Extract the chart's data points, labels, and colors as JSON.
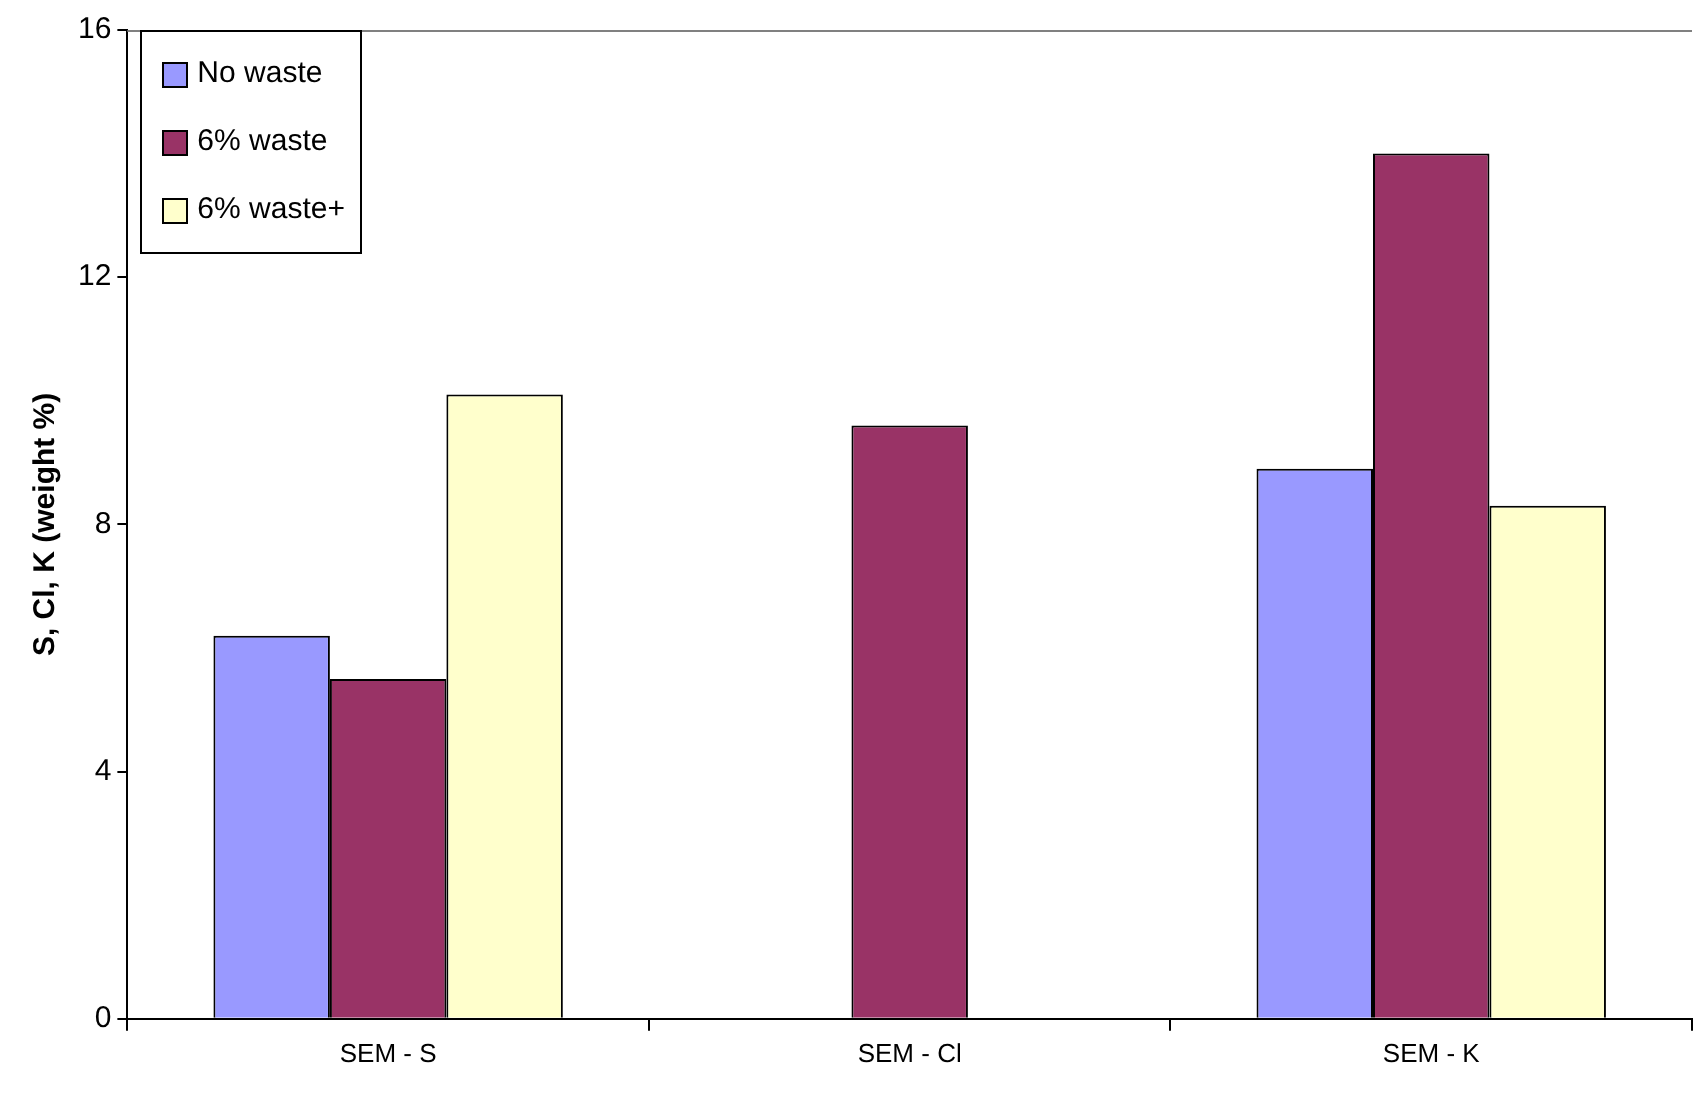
{
  "chart_data": {
    "type": "bar",
    "ylabel": "S, Cl, K (weight %)",
    "categories": [
      "SEM - S",
      "SEM - Cl",
      "SEM - K"
    ],
    "series": [
      {
        "name": "No waste",
        "color": "#9999ff",
        "values": [
          6.2,
          null,
          8.9
        ]
      },
      {
        "name": "6% waste",
        "color": "#993366",
        "values": [
          5.5,
          9.6,
          14.0
        ]
      },
      {
        "name": "6% waste+",
        "color": "#ffffcc",
        "values": [
          10.1,
          null,
          8.3
        ]
      }
    ],
    "ylim": [
      0,
      16
    ],
    "yticks": [
      0,
      4,
      8,
      12,
      16
    ],
    "grid": false,
    "legend": "top left"
  }
}
